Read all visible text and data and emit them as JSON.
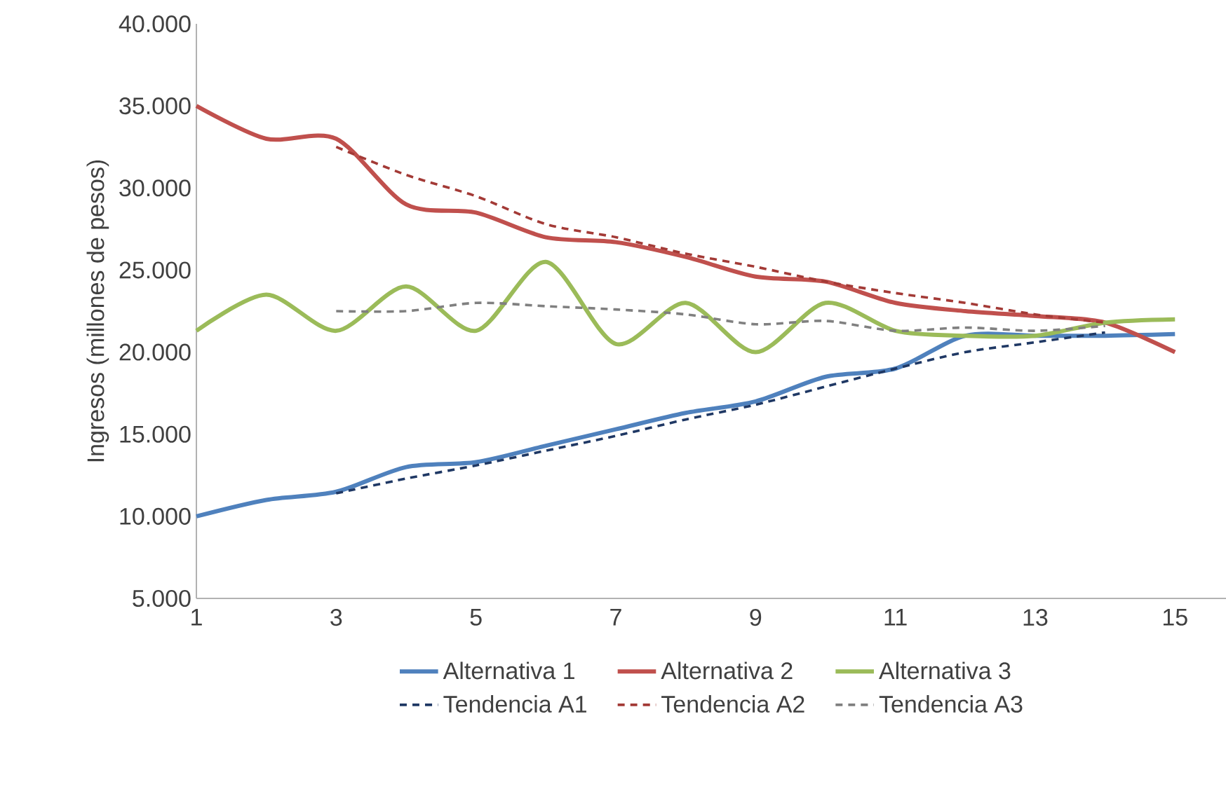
{
  "chart_data": {
    "type": "line",
    "ylabel": "Ingresos (millones de pesos)",
    "x": [
      1,
      2,
      3,
      4,
      5,
      6,
      7,
      8,
      9,
      10,
      11,
      12,
      13,
      14,
      15
    ],
    "xlim": [
      1,
      15.75
    ],
    "xticks": [
      1,
      3,
      5,
      7,
      9,
      11,
      13,
      15
    ],
    "ylim": [
      5000,
      40000
    ],
    "yticks": [
      {
        "value": 5000,
        "label": "5.000"
      },
      {
        "value": 10000,
        "label": "10.000"
      },
      {
        "value": 15000,
        "label": "15.000"
      },
      {
        "value": 20000,
        "label": "20.000"
      },
      {
        "value": 25000,
        "label": "25.000"
      },
      {
        "value": 30000,
        "label": "30.000"
      },
      {
        "value": 35000,
        "label": "35.000"
      },
      {
        "value": 40000,
        "label": "40.000"
      }
    ],
    "grid": false,
    "legend": "bottom",
    "marker": "none",
    "series": [
      {
        "name": "Alternativa 1",
        "color": "#4f81bd",
        "line_style": "solid",
        "values": [
          10000,
          11000,
          11500,
          13000,
          13300,
          14300,
          15300,
          16300,
          17000,
          18500,
          19000,
          21000,
          21000,
          21000,
          21100
        ]
      },
      {
        "name": "Alternativa 2",
        "color": "#c0504d",
        "line_style": "solid",
        "values": [
          35000,
          33000,
          33000,
          29000,
          28500,
          27000,
          26700,
          25800,
          24600,
          24300,
          23000,
          22500,
          22200,
          21800,
          20000
        ]
      },
      {
        "name": "Alternativa 3",
        "color": "#9bbb59",
        "line_style": "solid",
        "values": [
          21300,
          23500,
          21300,
          24000,
          21300,
          25500,
          20500,
          23000,
          20000,
          23000,
          21300,
          21000,
          21000,
          21800,
          22000
        ]
      },
      {
        "name": "Tendencia A1",
        "color": "#1f3864",
        "line_style": "dashed",
        "x": [
          3,
          4,
          5,
          6,
          7,
          8,
          9,
          10,
          11,
          12,
          13,
          14
        ],
        "values": [
          11400,
          12300,
          13100,
          14000,
          14900,
          15900,
          16800,
          17900,
          19000,
          20000,
          20600,
          21200
        ]
      },
      {
        "name": "Tendencia A2",
        "color": "#a33a36",
        "line_style": "dashed",
        "x": [
          3,
          4,
          5,
          6,
          7,
          8,
          9,
          10,
          11,
          12,
          13,
          14
        ],
        "values": [
          32500,
          30800,
          29500,
          27800,
          27000,
          26000,
          25200,
          24300,
          23600,
          23000,
          22300,
          21800
        ]
      },
      {
        "name": "Tendencia A3",
        "color": "#808080",
        "line_style": "dashed",
        "x": [
          3,
          4,
          5,
          6,
          7,
          8,
          9,
          10,
          11,
          12,
          13,
          14
        ],
        "values": [
          22500,
          22500,
          23000,
          22800,
          22600,
          22300,
          21700,
          21900,
          21300,
          21500,
          21300,
          21600
        ]
      }
    ]
  }
}
